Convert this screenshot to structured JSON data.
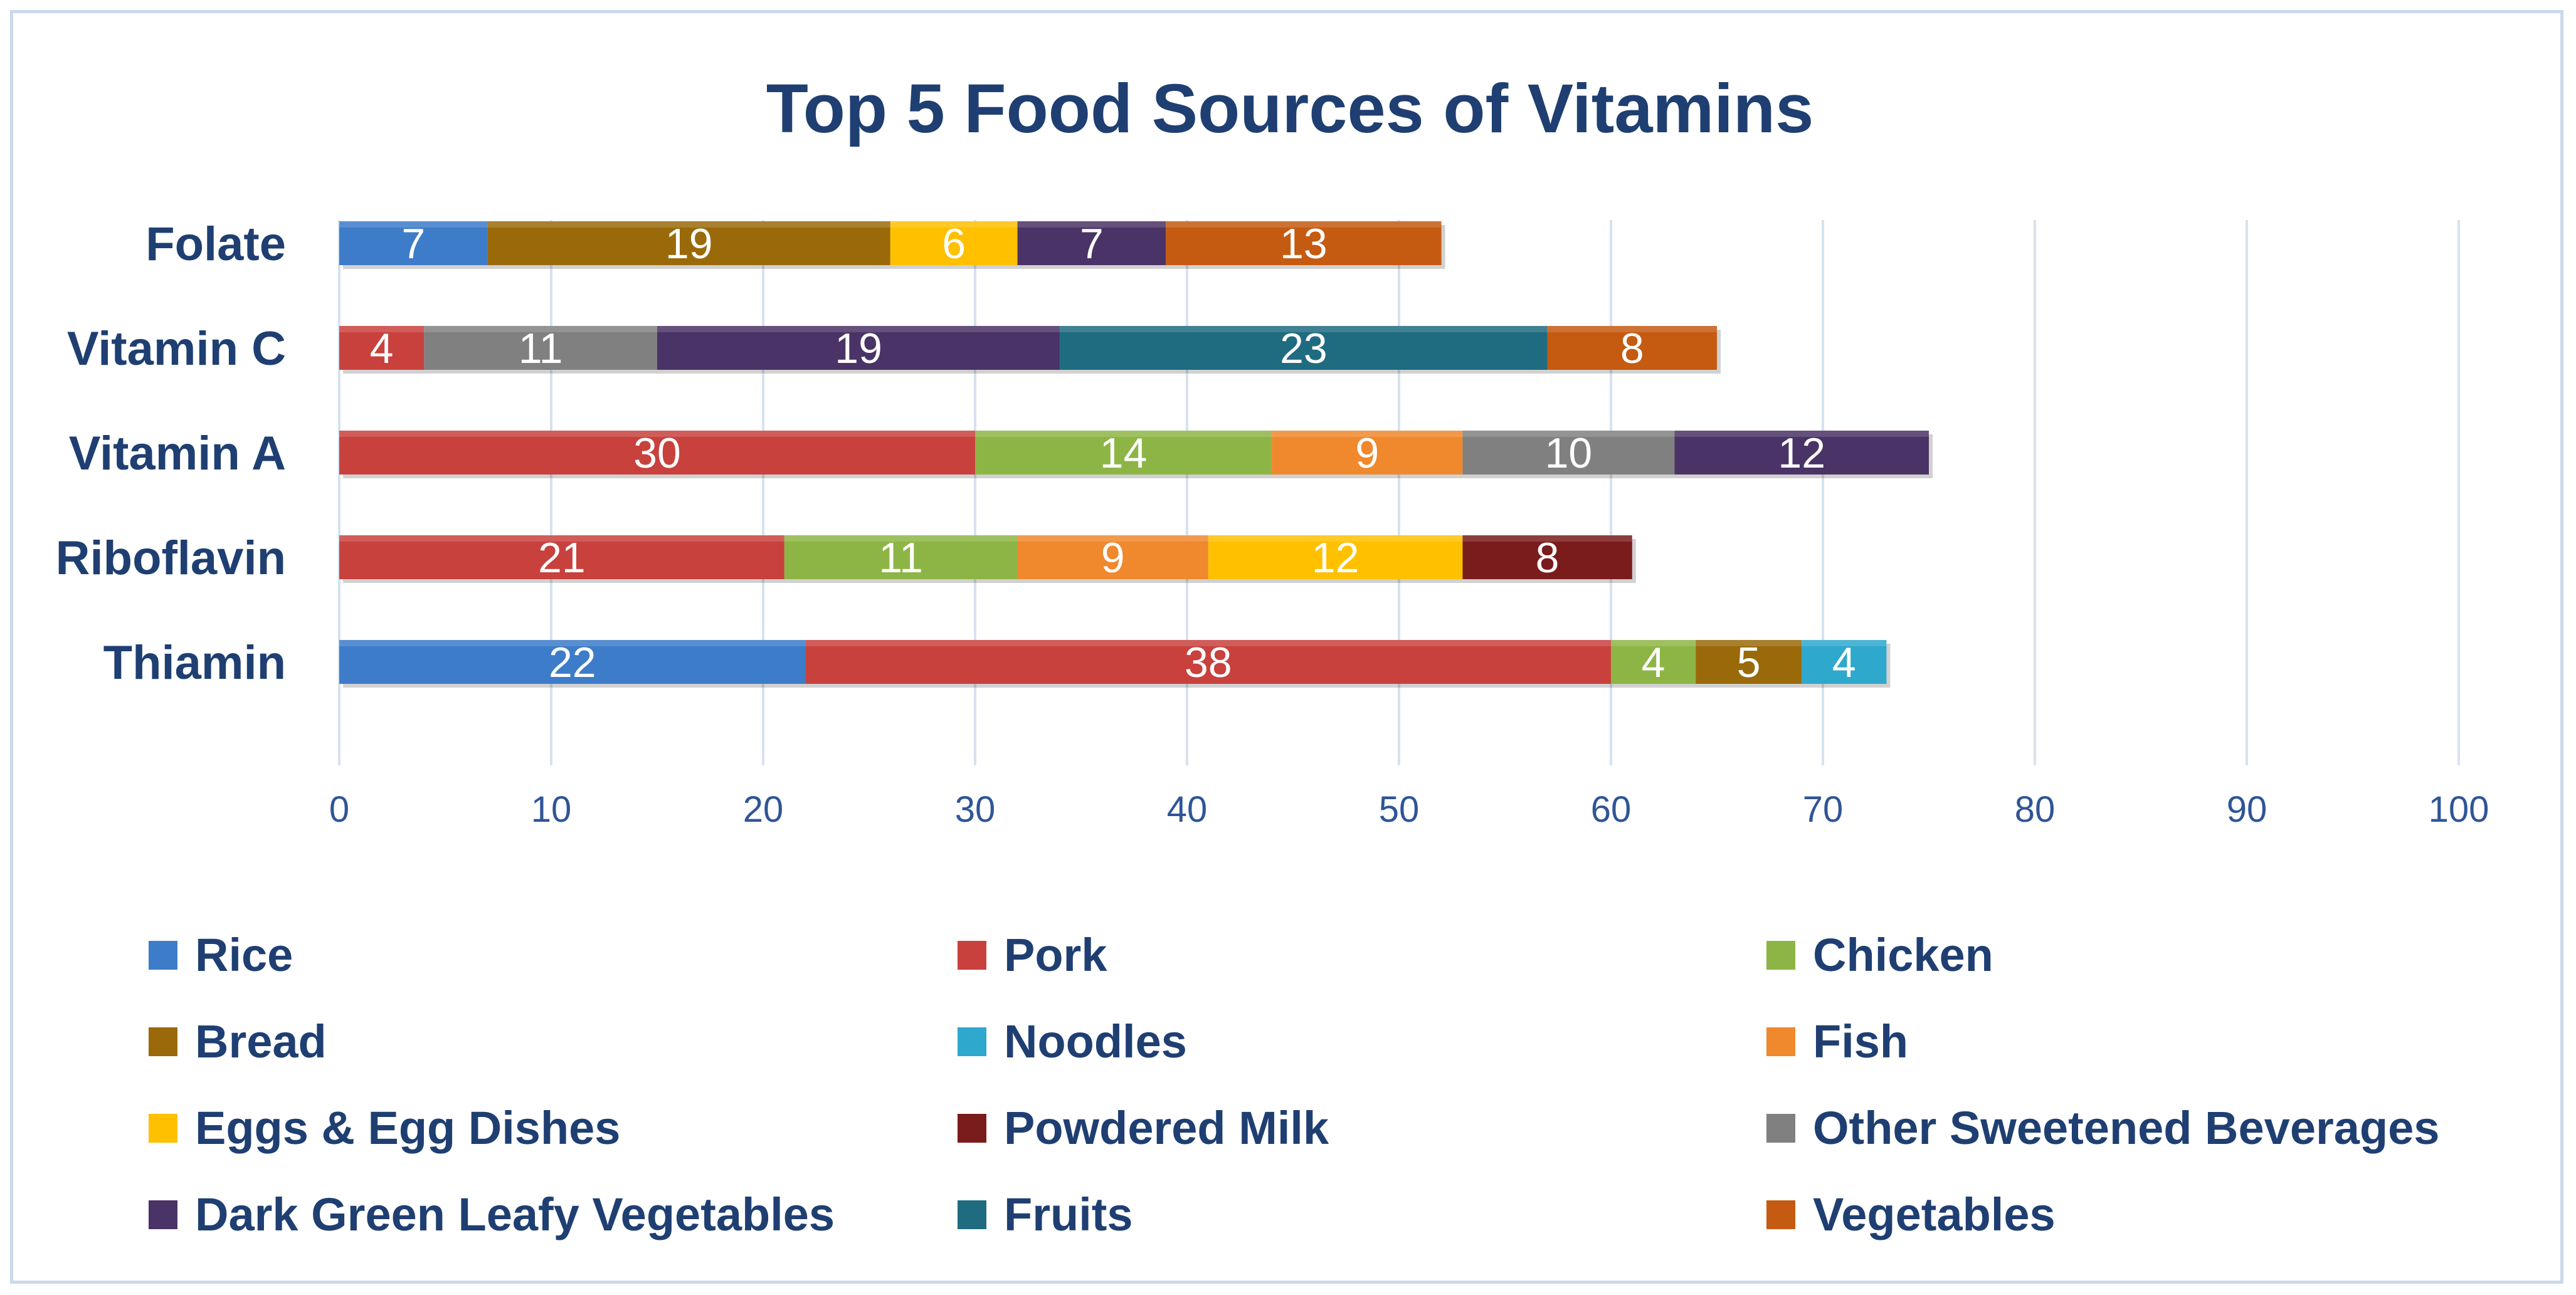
{
  "chart_data": {
    "type": "bar",
    "orientation": "horizontal",
    "stacked": true,
    "title": "Top 5 Food Sources of Vitamins",
    "xlabel": "",
    "ylabel": "",
    "xlim": [
      0,
      100
    ],
    "x_ticks": [
      "0",
      "10",
      "20",
      "30",
      "40",
      "50",
      "60",
      "70",
      "80",
      "90",
      "100"
    ],
    "grid": true,
    "legend_position": "bottom",
    "categories": [
      "Folate",
      "Vitamin C",
      "Vitamin A",
      "Riboflavin",
      "Thiamin"
    ],
    "series": [
      {
        "name": "Rice",
        "color": "#3d7cc9",
        "values": [
          7,
          null,
          null,
          null,
          22
        ]
      },
      {
        "name": "Pork",
        "color": "#c8413d",
        "values": [
          null,
          4,
          30,
          21,
          38
        ]
      },
      {
        "name": "Chicken",
        "color": "#8db545",
        "values": [
          null,
          null,
          14,
          11,
          4
        ]
      },
      {
        "name": "Bread",
        "color": "#9a6a0a",
        "values": [
          19,
          null,
          null,
          null,
          5
        ]
      },
      {
        "name": "Noodles",
        "color": "#2ea8cd",
        "values": [
          null,
          null,
          null,
          null,
          4
        ]
      },
      {
        "name": "Fish",
        "color": "#f0882d",
        "values": [
          null,
          null,
          9,
          9,
          null
        ]
      },
      {
        "name": "Eggs & Egg Dishes",
        "color": "#ffc000",
        "values": [
          6,
          null,
          null,
          12,
          null
        ]
      },
      {
        "name": "Powdered Milk",
        "color": "#7b1c1c",
        "values": [
          null,
          null,
          null,
          8,
          null
        ]
      },
      {
        "name": "Other Sweetened Beverages",
        "color": "#808080",
        "values": [
          null,
          11,
          10,
          null,
          null
        ]
      },
      {
        "name": "Dark Green Leafy Vegetables",
        "color": "#4a3366",
        "values": [
          7,
          19,
          12,
          null,
          null
        ]
      },
      {
        "name": "Fruits",
        "color": "#1f6b80",
        "values": [
          null,
          23,
          null,
          null,
          null
        ]
      },
      {
        "name": "Vegetables",
        "color": "#c55a11",
        "values": [
          13,
          8,
          null,
          null,
          null
        ]
      }
    ],
    "stack_order": [
      [
        "Rice",
        "Bread",
        "Eggs & Egg Dishes",
        "Dark Green Leafy Vegetables",
        "Vegetables"
      ],
      [
        "Pork",
        "Other Sweetened Beverages",
        "Dark Green Leafy Vegetables",
        "Fruits",
        "Vegetables"
      ],
      [
        "Pork",
        "Chicken",
        "Fish",
        "Other Sweetened Beverages",
        "Dark Green Leafy Vegetables"
      ],
      [
        "Pork",
        "Chicken",
        "Fish",
        "Eggs & Egg Dishes",
        "Powdered Milk"
      ],
      [
        "Rice",
        "Pork",
        "Chicken",
        "Bread",
        "Noodles"
      ]
    ]
  }
}
